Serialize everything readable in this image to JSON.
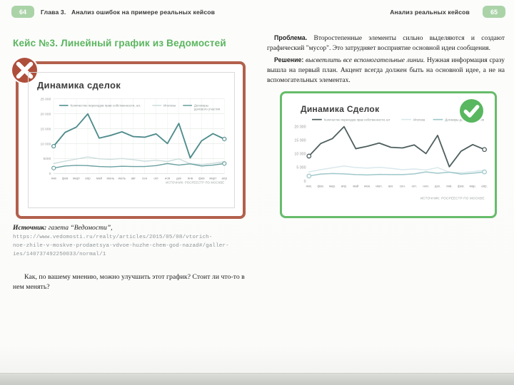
{
  "book": {
    "left_page": {
      "page_number": "64",
      "chapter_label": "Глава 3.",
      "chapter_title": "Анализ ошибок  на примере реальных кейсов",
      "case_title": "Кейс №3. Линейный график из Ведомостей",
      "source_label": "Источник:",
      "source_name": " газета “Ведомости”,",
      "source_url_line1": "https://www.vedomosti.ru/realty/articles/2015/05/08/vtorich-",
      "source_url_line2": "noe-zhile-v-moskve-prodaetsya-vdvoe-huzhe-chem-god-nazad#/galler-",
      "source_url_line3": "ies/140737492250033/normal/1",
      "question": "Как, по вашему мнению, можно улучшить этот график? Стоит ли что-то в нем менять?"
    },
    "right_page": {
      "page_number": "65",
      "running_title": "Анализ реальных кейсов",
      "problem_label": "Проблема.",
      "problem_text": " Второстепенные элементы сильно выделяются и создают графический \"мусор\". Это затрудняет восприятие основной идеи сообщения.",
      "solution_label": "Решение:",
      "solution_emphasis": " высветлить все вспомогательные линии.",
      "solution_text": " Нужная информация сразу вышла на первый план. Акцент всегда должен быть на основной идее, а не на вспомогательных элементах."
    },
    "colors": {
      "accent_green": "#5ab55e",
      "badge_green": "#abd3a8",
      "bad_border": "#b2604c",
      "bad_icon": "#ae4f3b",
      "good_border": "#66bc6a",
      "good_icon": "#58b75f"
    }
  },
  "chart_data": [
    {
      "type": "line",
      "verdict": "bad",
      "title": "Динамика сделок",
      "x": [
        "янв",
        "фев",
        "март",
        "апр",
        "май",
        "июнь",
        "июль",
        "авг",
        "сен",
        "окт",
        "ноя",
        "дек",
        "янв",
        "фев",
        "март",
        "апр"
      ],
      "series": [
        {
          "name": "Количество переходов прав собственности, шт.",
          "color": "#4f8c8c",
          "width": 1.9,
          "markers": "ends",
          "values": [
            9200,
            13800,
            15600,
            20000,
            11900,
            12800,
            14000,
            12400,
            12200,
            13300,
            10100,
            16800,
            5300,
            11000,
            13400,
            11600
          ]
        },
        {
          "name": "Ипотека",
          "color": "#cddddd",
          "width": 1.5,
          "markers": "none",
          "values": [
            3400,
            4200,
            4900,
            5600,
            5000,
            4800,
            5100,
            4700,
            4200,
            4500,
            4100,
            5000,
            3300,
            3100,
            3500,
            4000
          ]
        },
        {
          "name": "Договоры\nдолевого участия",
          "color": "#6ca0a0",
          "width": 1.5,
          "markers": "ends",
          "values": [
            1900,
            2600,
            2800,
            2700,
            2400,
            2300,
            2500,
            2400,
            2400,
            2700,
            3400,
            2900,
            3300,
            2600,
            2900,
            3400
          ]
        }
      ],
      "ylim": [
        0,
        25000
      ],
      "yticks": [
        {
          "v": 25000,
          "label": "25 000"
        },
        {
          "v": 20000,
          "label": "20 000"
        },
        {
          "v": 15000,
          "label": "15 000"
        },
        {
          "v": 10000,
          "label": "10 000"
        },
        {
          "v": 5000,
          "label": "5000"
        },
        {
          "v": 0,
          "label": "0"
        }
      ],
      "grid": true,
      "legend_position": "top",
      "source": "ИСТОЧНИК: РОСРЕЕСТР ПО МОСКВЕ"
    },
    {
      "type": "line",
      "verdict": "good",
      "title": "Динамика Сделок",
      "x": [
        "янв.",
        "фев.",
        "мар.",
        "апр.",
        "май",
        "июн.",
        "июл.",
        "авг.",
        "сен.",
        "окт.",
        "ноя.",
        "дек.",
        "янв.",
        "фев.",
        "мар.",
        "апр."
      ],
      "series": [
        {
          "name": "Количество переходов прав собственности, шт",
          "color": "#4e5e5e",
          "width": 1.7,
          "markers": "ends",
          "values": [
            9200,
            13800,
            15600,
            20000,
            11900,
            12800,
            14000,
            12400,
            12200,
            13300,
            10100,
            16800,
            5300,
            11000,
            13400,
            11600
          ]
        },
        {
          "name": "Ипотека",
          "color": "#d9e8ec",
          "width": 1.4,
          "markers": "none",
          "values": [
            3400,
            4200,
            4900,
            5600,
            5000,
            4800,
            5100,
            4700,
            4200,
            4500,
            4100,
            5000,
            3300,
            3100,
            3500,
            4000
          ]
        },
        {
          "name": "Договоры долевого участия",
          "color": "#9fc8ca",
          "width": 1.4,
          "markers": "ends",
          "values": [
            1900,
            2600,
            2800,
            2700,
            2400,
            2300,
            2500,
            2400,
            2400,
            2700,
            3400,
            2900,
            3300,
            2600,
            2900,
            3400
          ]
        }
      ],
      "ylim": [
        0,
        20500
      ],
      "yticks": [
        {
          "v": 20000,
          "label": "20 000"
        },
        {
          "v": 15000,
          "label": "15 000"
        },
        {
          "v": 10000,
          "label": "10 000"
        },
        {
          "v": 5000,
          "label": "5 000"
        },
        {
          "v": 0,
          "label": "0"
        }
      ],
      "grid": false,
      "legend_position": "top",
      "source": "ИСТОЧНИК: РОСРЕЕСТР ПО МОСКВЕ"
    }
  ]
}
